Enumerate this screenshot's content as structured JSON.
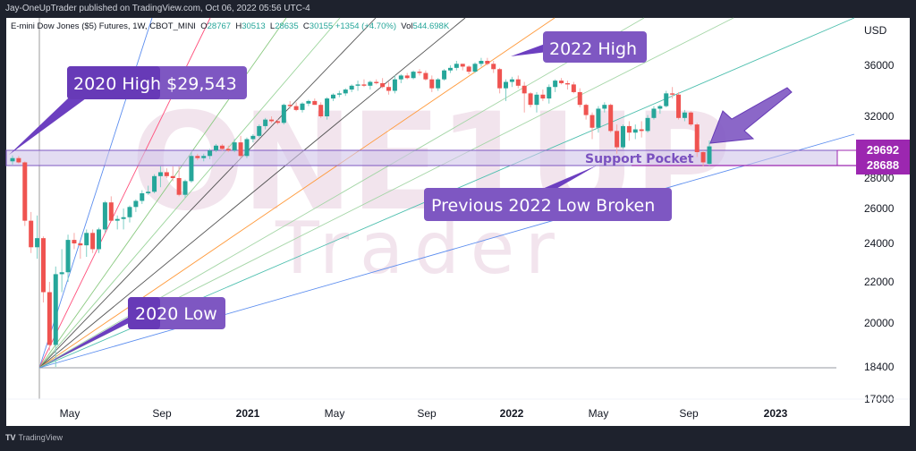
{
  "header": {
    "published_line": "Jay-OneUpTrader published on TradingView.com, Oct 06, 2022 05:56 UTC-4"
  },
  "legend": {
    "symbol": "E-mini Dow Jones ($5) Futures, 1W, CBOT_MINI",
    "open_label": "O",
    "open": "28767",
    "high_label": "H",
    "high": "30513",
    "low_label": "L",
    "low": "28635",
    "close_label": "C",
    "close": "30155",
    "change": "+1354 (+4.70%)",
    "vol_label": "Vol",
    "vol": "544.698K"
  },
  "price_axis": {
    "currency": "USD",
    "ticks": [
      "36000",
      "32000",
      "28000",
      "26000",
      "24000",
      "22000",
      "20000",
      "18400",
      "17000"
    ],
    "badge_upper": "29692",
    "badge_lower": "28688",
    "badge_color": "#9c27b0"
  },
  "time_axis": {
    "ticks": [
      {
        "label": "May",
        "bold": false
      },
      {
        "label": "Sep",
        "bold": false
      },
      {
        "label": "2021",
        "bold": true
      },
      {
        "label": "May",
        "bold": false
      },
      {
        "label": "Sep",
        "bold": false
      },
      {
        "label": "2022",
        "bold": true
      },
      {
        "label": "May",
        "bold": false
      },
      {
        "label": "Sep",
        "bold": false
      },
      {
        "label": "2023",
        "bold": true
      }
    ]
  },
  "annotations": {
    "high_2020": "2020 High $29,543",
    "high_2022": "2022 High",
    "low_2020": "2020 Low",
    "prev_low_broken": "Previous 2022 Low Broken",
    "support_pocket": "Support Pocket",
    "callout_color": "#6c3fc0"
  },
  "watermark": {
    "line1": "ONE1UP",
    "line2": "Trader"
  },
  "footer": {
    "brand_mark": "TV",
    "brand": "TradingView"
  },
  "colors": {
    "up": "#26a69a",
    "down": "#ef5350",
    "support_zone": "#d1c4e9"
  },
  "chart_data": {
    "type": "candlestick",
    "title": "E-mini Dow Jones ($5) Futures, 1W, CBOT_MINI",
    "xlabel": "",
    "ylabel": "USD",
    "ylim": [
      17000,
      37500
    ],
    "y_scale": "log",
    "x_ticks": [
      "May 2020",
      "Sep 2020",
      "2021",
      "May 2021",
      "Sep 2021",
      "2022",
      "May 2022",
      "Sep 2022",
      "2023"
    ],
    "last_bar": {
      "open": 28767,
      "high": 30513,
      "low": 28635,
      "close": 30155,
      "change": 1354,
      "change_pct": 4.7,
      "volume": "544.698K"
    },
    "levels": {
      "support_pocket_upper": 29692,
      "support_pocket_lower": 28688,
      "high_2020": 29543,
      "low_2020": 18400
    },
    "annotations": [
      "2020 High $29,543",
      "2022 High",
      "2020 Low",
      "Previous 2022 Low Broken",
      "Support Pocket"
    ],
    "gann_fan_origin": {
      "date": "Mar 2020",
      "price": 18400
    },
    "candles_approx": [
      [
        0,
        29000,
        29550,
        28700,
        29300
      ],
      [
        1,
        29300,
        29500,
        28800,
        28900
      ],
      [
        2,
        28900,
        29000,
        25000,
        25300
      ],
      [
        3,
        25300,
        25800,
        23500,
        23800
      ],
      [
        4,
        23800,
        25600,
        23200,
        24300
      ],
      [
        5,
        24300,
        24400,
        21000,
        21500
      ],
      [
        6,
        21500,
        22000,
        19000,
        19200
      ],
      [
        7,
        19200,
        22800,
        18400,
        22400
      ],
      [
        8,
        22400,
        23700,
        21500,
        22500
      ],
      [
        9,
        22500,
        24500,
        22000,
        24200
      ],
      [
        10,
        24200,
        24600,
        23700,
        24000
      ],
      [
        11,
        24000,
        24100,
        23200,
        23900
      ],
      [
        12,
        23900,
        24800,
        23300,
        24600
      ],
      [
        13,
        24600,
        24800,
        23500,
        23700
      ],
      [
        14,
        23700,
        24900,
        23500,
        24800
      ],
      [
        15,
        24800,
        26500,
        24600,
        26400
      ],
      [
        16,
        26400,
        26800,
        25300,
        25300
      ],
      [
        17,
        25300,
        25600,
        24800,
        25400
      ],
      [
        18,
        25400,
        26000,
        24800,
        25500
      ],
      [
        19,
        25500,
        26200,
        25200,
        26100
      ],
      [
        20,
        26100,
        26600,
        25800,
        26500
      ],
      [
        21,
        26500,
        27200,
        26300,
        27000
      ],
      [
        22,
        27000,
        27500,
        26900,
        27100
      ],
      [
        23,
        27100,
        28200,
        27000,
        28100
      ],
      [
        24,
        28100,
        28600,
        27400,
        28300
      ],
      [
        25,
        28300,
        28500,
        28000,
        28100
      ],
      [
        26,
        28100,
        28600,
        27800,
        28000
      ],
      [
        27,
        28000,
        28600,
        26800,
        26900
      ],
      [
        28,
        26900,
        27900,
        26700,
        27800
      ],
      [
        29,
        27800,
        29800,
        27700,
        29500
      ],
      [
        30,
        29500,
        29700,
        29100,
        29300
      ],
      [
        31,
        29300,
        29700,
        29000,
        29500
      ],
      [
        32,
        29500,
        30000,
        29200,
        29900
      ],
      [
        33,
        29900,
        30300,
        29800,
        30200
      ],
      [
        34,
        30200,
        30300,
        29900,
        30000
      ],
      [
        35,
        30000,
        30200,
        29800,
        29900
      ],
      [
        36,
        29900,
        30600,
        29800,
        30400
      ],
      [
        37,
        30400,
        30800,
        29300,
        29500
      ],
      [
        38,
        29500,
        30700,
        29300,
        30600
      ],
      [
        39,
        30600,
        30900,
        30400,
        30800
      ],
      [
        40,
        30800,
        31500,
        30700,
        31400
      ],
      [
        41,
        31400,
        31900,
        31200,
        31800
      ],
      [
        42,
        31800,
        32000,
        31600,
        31700
      ],
      [
        43,
        31700,
        31800,
        31500,
        31600
      ],
      [
        44,
        31600,
        33000,
        31500,
        32900
      ],
      [
        45,
        32900,
        33200,
        32600,
        32800
      ],
      [
        46,
        32800,
        33100,
        32400,
        32500
      ],
      [
        47,
        32500,
        33100,
        32300,
        33000
      ],
      [
        48,
        33000,
        33300,
        32800,
        33200
      ],
      [
        49,
        33200,
        33400,
        32900,
        32900
      ],
      [
        50,
        32900,
        33100,
        31900,
        32000
      ],
      [
        51,
        32000,
        33500,
        31800,
        33400
      ],
      [
        52,
        33400,
        33800,
        33200,
        33700
      ],
      [
        53,
        33700,
        34000,
        33500,
        33800
      ],
      [
        54,
        33800,
        34200,
        33600,
        34100
      ],
      [
        55,
        34100,
        34500,
        33900,
        34400
      ],
      [
        56,
        34400,
        34800,
        34000,
        34500
      ],
      [
        57,
        34500,
        34900,
        34300,
        34400
      ],
      [
        58,
        34400,
        34800,
        34100,
        34700
      ],
      [
        59,
        34700,
        34900,
        34500,
        34600
      ],
      [
        60,
        34600,
        35000,
        34200,
        34300
      ],
      [
        61,
        34300,
        34700,
        33700,
        34000
      ],
      [
        62,
        34000,
        35200,
        33800,
        34900
      ],
      [
        63,
        34900,
        35300,
        34600,
        35200
      ],
      [
        64,
        35200,
        35400,
        34900,
        35000
      ],
      [
        65,
        35000,
        35600,
        34900,
        35500
      ],
      [
        66,
        35500,
        35700,
        35200,
        35400
      ],
      [
        67,
        35400,
        35600,
        34800,
        34900
      ],
      [
        68,
        34900,
        35200,
        33900,
        34200
      ],
      [
        69,
        34200,
        35000,
        34000,
        34900
      ],
      [
        70,
        34900,
        35700,
        34800,
        35600
      ],
      [
        71,
        35600,
        36000,
        35400,
        35800
      ],
      [
        72,
        35800,
        36300,
        35600,
        36100
      ],
      [
        73,
        36100,
        36100,
        35600,
        35900
      ],
      [
        74,
        35900,
        36000,
        35300,
        35500
      ],
      [
        75,
        35500,
        36200,
        35400,
        36100
      ],
      [
        76,
        36100,
        36500,
        35900,
        36300
      ],
      [
        77,
        36300,
        36500,
        36000,
        36100
      ],
      [
        78,
        36100,
        36300,
        35400,
        35700
      ],
      [
        79,
        35700,
        35800,
        33800,
        34200
      ],
      [
        80,
        34200,
        34900,
        33200,
        34700
      ],
      [
        81,
        34700,
        35100,
        34300,
        34900
      ],
      [
        82,
        34900,
        35200,
        34200,
        34400
      ],
      [
        83,
        34400,
        34700,
        32300,
        33800
      ],
      [
        84,
        33800,
        33900,
        32700,
        32900
      ],
      [
        85,
        32900,
        33900,
        32300,
        33700
      ],
      [
        86,
        33700,
        34100,
        33200,
        33400
      ],
      [
        87,
        33400,
        34500,
        33000,
        34300
      ],
      [
        88,
        34300,
        34900,
        33900,
        34800
      ],
      [
        89,
        34800,
        35000,
        34500,
        34600
      ],
      [
        90,
        34600,
        34800,
        34100,
        34500
      ],
      [
        91,
        34500,
        34700,
        33800,
        33900
      ],
      [
        92,
        33900,
        34200,
        32700,
        32900
      ],
      [
        93,
        32900,
        33000,
        31800,
        32100
      ],
      [
        94,
        32100,
        32300,
        30600,
        31300
      ],
      [
        95,
        31300,
        32800,
        31000,
        32600
      ],
      [
        96,
        32600,
        33100,
        32300,
        32900
      ],
      [
        97,
        32900,
        33000,
        31000,
        31100
      ],
      [
        98,
        31100,
        31500,
        29700,
        30100
      ],
      [
        99,
        30100,
        31500,
        30000,
        31400
      ],
      [
        100,
        31400,
        31700,
        30500,
        31000
      ],
      [
        101,
        31000,
        31500,
        30600,
        31200
      ],
      [
        102,
        31200,
        31700,
        30700,
        31100
      ],
      [
        103,
        31100,
        32100,
        31000,
        31900
      ],
      [
        104,
        31900,
        32800,
        31800,
        32600
      ],
      [
        105,
        32600,
        32900,
        32200,
        32800
      ],
      [
        106,
        32800,
        34000,
        32700,
        33800
      ],
      [
        107,
        33800,
        34300,
        33400,
        33700
      ],
      [
        108,
        33700,
        33900,
        31800,
        31900
      ],
      [
        109,
        31900,
        32500,
        31700,
        32300
      ],
      [
        110,
        32300,
        32400,
        31400,
        31500
      ],
      [
        111,
        31500,
        31600,
        29400,
        29800
      ],
      [
        112,
        29800,
        29900,
        28600,
        28900
      ],
      [
        113,
        28767,
        30513,
        28635,
        30155
      ]
    ]
  }
}
